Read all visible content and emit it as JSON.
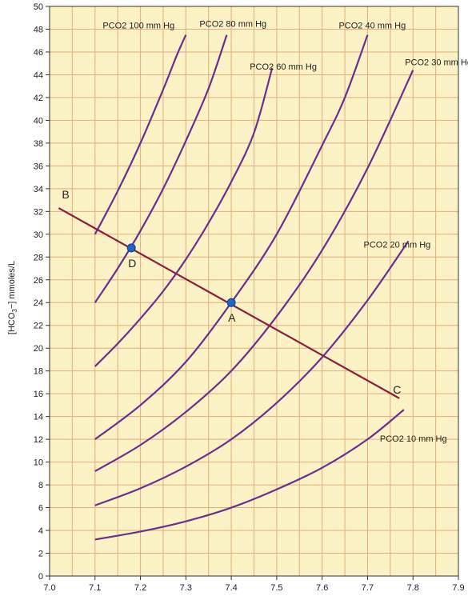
{
  "chart_data": {
    "type": "line",
    "title": "",
    "xlabel": "",
    "ylabel": "[HCO3−] mmoles/L",
    "xlim": [
      7.0,
      7.9
    ],
    "ylim": [
      0,
      50
    ],
    "x_ticks": [
      "7.0",
      "7.1",
      "7.2",
      "7.3",
      "7.4",
      "7.5",
      "7.6",
      "7.7",
      "7.8",
      "7.9"
    ],
    "y_ticks": [
      "0",
      "2",
      "4",
      "6",
      "8",
      "10",
      "12",
      "14",
      "16",
      "18",
      "20",
      "22",
      "24",
      "26",
      "28",
      "30",
      "32",
      "34",
      "36",
      "38",
      "40",
      "42",
      "44",
      "46",
      "48",
      "50"
    ],
    "grid": true,
    "colors": {
      "background": "#fbf2c5",
      "grid": "#e2ae7c",
      "isobar": "#6a2f8f",
      "buffer_line": "#8e1c3f",
      "point": "#1f64c8"
    },
    "series": [
      {
        "name": "PCO2 100 mm Hg",
        "x": [
          7.1,
          7.15,
          7.2,
          7.25,
          7.28,
          7.3
        ],
        "y": [
          30.0,
          33.8,
          38.0,
          42.7,
          45.7,
          47.5
        ]
      },
      {
        "name": "PCO2 80 mm Hg",
        "x": [
          7.1,
          7.15,
          7.2,
          7.25,
          7.3,
          7.35,
          7.39
        ],
        "y": [
          24.0,
          27.0,
          30.3,
          34.0,
          38.2,
          42.8,
          47.5
        ]
      },
      {
        "name": "PCO2 60 mm Hg",
        "x": [
          7.1,
          7.15,
          7.2,
          7.25,
          7.3,
          7.35,
          7.4,
          7.45,
          7.49
        ],
        "y": [
          18.4,
          20.4,
          22.6,
          25.0,
          27.8,
          31.0,
          34.6,
          38.9,
          44.6
        ]
      },
      {
        "name": "PCO2 40 mm Hg",
        "x": [
          7.1,
          7.2,
          7.3,
          7.4,
          7.5,
          7.6,
          7.65,
          7.7
        ],
        "y": [
          12.0,
          15.0,
          18.8,
          24.0,
          30.0,
          37.8,
          42.0,
          47.5
        ]
      },
      {
        "name": "PCO2 30 mm Hg",
        "x": [
          7.1,
          7.2,
          7.3,
          7.4,
          7.5,
          7.6,
          7.7,
          7.8
        ],
        "y": [
          9.2,
          11.5,
          14.4,
          18.0,
          22.8,
          28.6,
          35.8,
          44.4
        ]
      },
      {
        "name": "PCO2 20 mm Hg",
        "x": [
          7.1,
          7.2,
          7.3,
          7.4,
          7.5,
          7.6,
          7.7,
          7.79
        ],
        "y": [
          6.2,
          7.7,
          9.6,
          12.0,
          15.2,
          19.2,
          24.2,
          29.4
        ]
      },
      {
        "name": "PCO2 10 mm Hg",
        "x": [
          7.1,
          7.2,
          7.3,
          7.4,
          7.5,
          7.6,
          7.7,
          7.78
        ],
        "y": [
          3.2,
          3.9,
          4.8,
          6.0,
          7.6,
          9.5,
          12.0,
          14.6
        ]
      }
    ],
    "buffer_line": {
      "x": [
        7.02,
        7.77
      ],
      "y": [
        32.3,
        15.6
      ]
    },
    "points": [
      {
        "label": "A",
        "x": 7.4,
        "y": 24.0
      },
      {
        "label": "D",
        "x": 7.18,
        "y": 28.8
      }
    ],
    "line_labels": [
      {
        "label": "B",
        "x": 7.02,
        "y": 32.3
      },
      {
        "label": "C",
        "x": 7.77,
        "y": 15.6
      }
    ]
  }
}
